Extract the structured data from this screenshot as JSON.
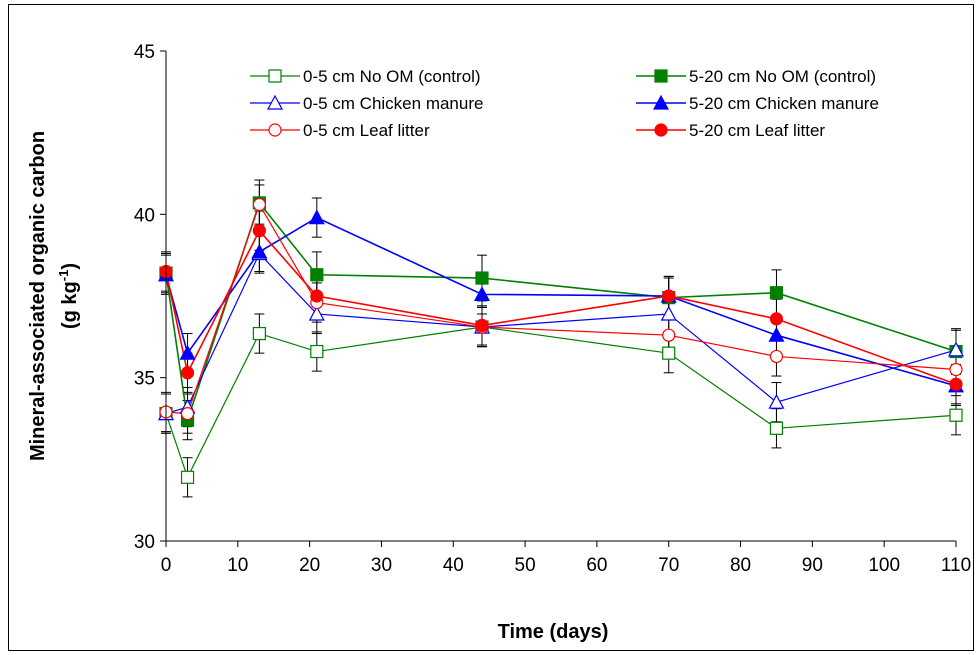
{
  "chart_data": {
    "type": "line",
    "xlabel": "Time (days)",
    "ylabel_line1": "Mineral-associated organic carbon",
    "ylabel_line2_prefix": "(g kg",
    "ylabel_line2_sup": "-1",
    "ylabel_line2_suffix": ")",
    "xlim": [
      0,
      110
    ],
    "ylim": [
      30,
      45
    ],
    "xticks": [
      0,
      10,
      20,
      30,
      40,
      50,
      60,
      70,
      80,
      90,
      100,
      110
    ],
    "yticks": [
      30,
      35,
      40,
      45
    ],
    "grid": false,
    "legend_position": "top-right",
    "x": [
      0,
      3,
      13,
      21,
      44,
      70,
      85,
      110
    ],
    "series": [
      {
        "name": "0-5 cm No OM (control)",
        "color": "#008000",
        "marker": "square",
        "filled": false,
        "values": [
          33.9,
          31.95,
          36.35,
          35.8,
          36.55,
          35.75,
          33.45,
          33.85
        ],
        "errors": [
          0.6,
          0.6,
          0.6,
          0.6,
          0.6,
          0.6,
          0.6,
          0.6
        ]
      },
      {
        "name": "5-20 cm No OM (control)",
        "color": "#008000",
        "marker": "square",
        "filled": true,
        "values": [
          38.2,
          33.7,
          40.35,
          38.15,
          38.05,
          37.45,
          37.6,
          35.8
        ],
        "errors": [
          0.6,
          0.6,
          0.7,
          0.7,
          0.7,
          0.6,
          0.7,
          0.7
        ]
      },
      {
        "name": "0-5 cm Chicken manure",
        "color": "#0000ff",
        "marker": "triangle",
        "filled": false,
        "values": [
          33.9,
          34.1,
          38.8,
          36.95,
          36.55,
          36.95,
          34.25,
          35.85
        ],
        "errors": [
          0.6,
          0.6,
          0.6,
          0.6,
          0.6,
          0.6,
          0.6,
          0.6
        ]
      },
      {
        "name": "5-20 cm Chicken manure",
        "color": "#0000ff",
        "marker": "triangle",
        "filled": true,
        "values": [
          38.15,
          35.75,
          38.85,
          39.9,
          37.55,
          37.5,
          36.3,
          34.75
        ],
        "errors": [
          0.6,
          0.6,
          0.6,
          0.6,
          0.6,
          0.6,
          0.6,
          0.6
        ]
      },
      {
        "name": "0-5 cm Leaf litter",
        "color": "#ff0000",
        "marker": "circle",
        "filled": false,
        "values": [
          33.95,
          33.9,
          40.3,
          37.3,
          36.55,
          36.3,
          35.65,
          35.25
        ],
        "errors": [
          0.6,
          0.6,
          0.6,
          0.6,
          0.6,
          0.6,
          0.6,
          0.6
        ]
      },
      {
        "name": "5-20 cm Leaf litter",
        "color": "#ff0000",
        "marker": "circle",
        "filled": true,
        "values": [
          38.25,
          35.15,
          39.5,
          37.5,
          36.6,
          37.5,
          36.8,
          34.8
        ],
        "errors": [
          0.6,
          0.6,
          0.6,
          0.6,
          0.6,
          0.6,
          0.6,
          0.6
        ]
      }
    ]
  }
}
